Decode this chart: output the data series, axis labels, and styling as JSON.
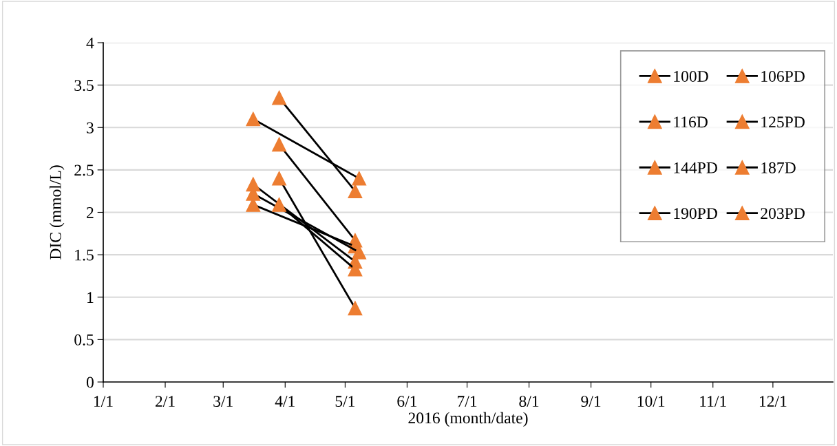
{
  "chart_data": {
    "type": "line",
    "xlabel": "2016 (month/date)",
    "ylabel": "DIC (mmol/L)",
    "xlim": [
      "2016-01-01",
      "2016-12-31"
    ],
    "xticks": [
      {
        "value": "2016-01-01",
        "label": "1/1"
      },
      {
        "value": "2016-02-01",
        "label": "2/1"
      },
      {
        "value": "2016-03-01",
        "label": "3/1"
      },
      {
        "value": "2016-04-01",
        "label": "4/1"
      },
      {
        "value": "2016-05-01",
        "label": "5/1"
      },
      {
        "value": "2016-06-01",
        "label": "6/1"
      },
      {
        "value": "2016-07-01",
        "label": "7/1"
      },
      {
        "value": "2016-08-01",
        "label": "8/1"
      },
      {
        "value": "2016-09-01",
        "label": "9/1"
      },
      {
        "value": "2016-10-01",
        "label": "10/1"
      },
      {
        "value": "2016-11-01",
        "label": "11/1"
      },
      {
        "value": "2016-12-01",
        "label": "12/1"
      }
    ],
    "ylim": [
      0,
      4
    ],
    "yticks": [
      0,
      0.5,
      1,
      1.5,
      2,
      2.5,
      3,
      3.5,
      4
    ],
    "grid": "y",
    "legend": "top right",
    "marker": "triangle",
    "line_style": "solid",
    "series": [
      {
        "name": "100D",
        "color": "#ed7d31",
        "x": [
          "2016-03-16",
          "2016-05-08"
        ],
        "values": [
          3.1,
          2.4
        ]
      },
      {
        "name": "106PD",
        "color": "#ed7d31",
        "x": [
          "2016-03-29",
          "2016-05-06"
        ],
        "values": [
          3.35,
          2.25
        ]
      },
      {
        "name": "116D",
        "color": "#ed7d31",
        "x": [
          "2016-03-29",
          "2016-05-06"
        ],
        "values": [
          2.8,
          1.67
        ]
      },
      {
        "name": "125PD",
        "color": "#ed7d31",
        "x": [
          "2016-03-29",
          "2016-05-06"
        ],
        "values": [
          2.4,
          0.87
        ]
      },
      {
        "name": "144PD",
        "color": "#ed7d31",
        "x": [
          "2016-03-16",
          "2016-05-06"
        ],
        "values": [
          2.09,
          1.6
        ]
      },
      {
        "name": "187D",
        "color": "#ed7d31",
        "x": [
          "2016-03-16",
          "2016-05-08"
        ],
        "values": [
          2.22,
          1.53
        ]
      },
      {
        "name": "190PD",
        "color": "#ed7d31",
        "x": [
          "2016-03-16",
          "2016-05-06"
        ],
        "values": [
          2.33,
          1.42
        ]
      },
      {
        "name": "203PD",
        "color": "#ed7d31",
        "x": [
          "2016-03-29",
          "2016-05-06"
        ],
        "values": [
          2.09,
          1.33
        ]
      }
    ]
  }
}
